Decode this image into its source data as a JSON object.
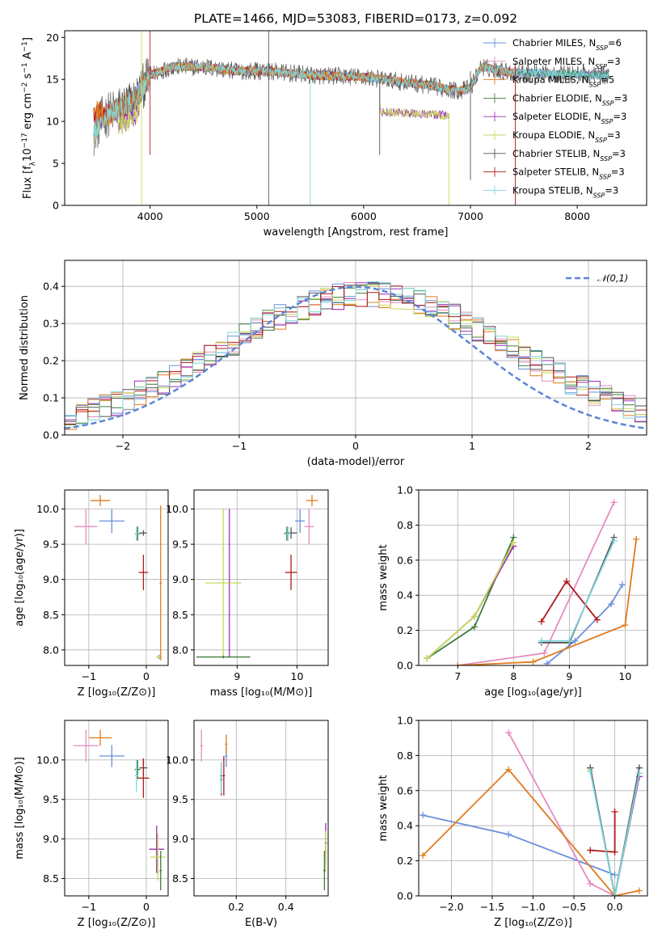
{
  "figure": {
    "title": "PLATE=1466, MJD=53083, FIBERID=0173, z=0.092",
    "series": [
      {
        "name": "Chabrier MILES, N",
        "sub": "SSP",
        "suffix": "=6",
        "color": "#6a8fdc"
      },
      {
        "name": "Salpeter MILES, N",
        "sub": "SSP",
        "suffix": "=3",
        "color": "#e58cc0"
      },
      {
        "name": "Kroupa MILES, N",
        "sub": "SSP",
        "suffix": "=5",
        "color": "#e07b1f"
      },
      {
        "name": "Chabrier ELODIE, N",
        "sub": "SSP",
        "suffix": "=3",
        "color": "#3e7d3e"
      },
      {
        "name": "Salpeter ELODIE, N",
        "sub": "SSP",
        "suffix": "=3",
        "color": "#9b2fb5"
      },
      {
        "name": "Kroupa ELODIE, N",
        "sub": "SSP",
        "suffix": "=3",
        "color": "#c7d95a"
      },
      {
        "name": "Chabrier STELIB, N",
        "sub": "SSP",
        "suffix": "=3",
        "color": "#555555"
      },
      {
        "name": "Salpeter STELIB, N",
        "sub": "SSP",
        "suffix": "=3",
        "color": "#b01818"
      },
      {
        "name": "Kroupa STELIB, N",
        "sub": "SSP",
        "suffix": "=3",
        "color": "#7fd6dc"
      }
    ]
  },
  "chart_data": [
    {
      "id": "spectrum",
      "type": "line",
      "xlabel": "wavelength [Angstrom, rest frame]",
      "ylabel": "Flux [f$_\\lambda$10$^{-17}$ erg cm$^{-2}$ s$^{-1}$ A$^{-1}$]",
      "ylabel_parts": [
        "Flux [f",
        "λ",
        "10",
        "−17",
        " erg cm",
        "−2",
        " s",
        "−1",
        " A",
        "−1",
        "]"
      ],
      "xlim": [
        3200,
        8650
      ],
      "ylim": [
        0,
        20.8
      ],
      "xticks": [
        4000,
        5000,
        6000,
        7000,
        8000
      ],
      "yticks": [
        0,
        5,
        10,
        15,
        20
      ],
      "grid": false,
      "legend": "upper-right",
      "continuum_knots": {
        "x": [
          3470,
          3560,
          3700,
          3850,
          4000,
          4200,
          4500,
          4800,
          5100,
          5500,
          6000,
          6500,
          6900,
          7000,
          7100,
          7400,
          8000,
          8300
        ],
        "y": [
          8.5,
          10.5,
          11.5,
          12.5,
          15.5,
          16.5,
          16.5,
          16.0,
          16.0,
          15.5,
          15.3,
          14.5,
          13.6,
          14.0,
          16.5,
          15.8,
          15.6,
          15.5
        ]
      }
    },
    {
      "id": "residuals",
      "type": "histogram",
      "xlabel": "(data-model)/error",
      "ylabel": "Normed distribution",
      "xlim": [
        -2.5,
        2.5
      ],
      "ylim": [
        0,
        0.47
      ],
      "xticks": [
        -2,
        -1,
        0,
        1,
        2
      ],
      "yticks": [
        0.0,
        0.1,
        0.2,
        0.3,
        0.4
      ],
      "grid": true,
      "legend": "upper-right",
      "bin_width": 0.1,
      "reference_curve": {
        "label": "𝒩(0,1)",
        "mean": 0,
        "sigma": 1,
        "color": "#5b86d6"
      }
    },
    {
      "id": "age_vs_Z",
      "type": "errorbar",
      "xlabel": "Z [log$_{10}$(Z/Z$_\\odot$)]",
      "ylabel": "age  [log$_{10}$(age/yr)]",
      "xlim": [
        -1.42,
        0.38
      ],
      "ylim": [
        7.78,
        10.27
      ],
      "xticks": [
        -1,
        0
      ],
      "yticks": [
        8.0,
        8.5,
        9.0,
        9.5,
        10.0
      ],
      "grid": true,
      "points": [
        {
          "s": 0,
          "x": -0.6,
          "xerr": 0.22,
          "y": 9.83,
          "yerr": 0.17
        },
        {
          "s": 1,
          "x": -1.05,
          "xerr": 0.2,
          "y": 9.75,
          "yerr": 0.25
        },
        {
          "s": 2,
          "x": -0.8,
          "xerr": 0.17,
          "y": 10.12,
          "yerr": 0.08
        },
        {
          "s": 3,
          "x": -0.15,
          "xerr": 0.05,
          "y": 9.65,
          "yerr": 0.1
        },
        {
          "s": 4,
          "x": 0.22,
          "xerr": 0.04,
          "y": 7.9,
          "yerr": 0.03
        },
        {
          "s": 5,
          "x": 0.22,
          "xerr": 0.05,
          "y": 7.9,
          "yerr": 0.02
        },
        {
          "s": 6,
          "x": -0.05,
          "xerr": 0.06,
          "y": 9.66,
          "yerr": 0.04
        },
        {
          "s": 7,
          "x": -0.05,
          "xerr": 0.08,
          "y": 9.1,
          "yerr": 0.25
        },
        {
          "s": 8,
          "x": -0.17,
          "xerr": 0.03,
          "y": 9.65,
          "yerr": 0.1
        },
        {
          "s": 2,
          "x": 0.25,
          "xerr": 0.02,
          "y": 8.95,
          "yerr": 1.1
        }
      ]
    },
    {
      "id": "age_vs_mass",
      "type": "errorbar",
      "xlabel": "mass [log$_{10}$(M/M$_\\odot$)]",
      "xlim": [
        8.28,
        10.52
      ],
      "ylim": [
        7.78,
        10.27
      ],
      "xticks": [
        9,
        10
      ],
      "yticks": [
        8.0,
        8.5,
        9.0,
        9.5,
        10.0
      ],
      "grid": true,
      "points": [
        {
          "s": 0,
          "x": 10.05,
          "xerr": 0.08,
          "y": 9.83,
          "yerr": 0.17
        },
        {
          "s": 1,
          "x": 10.2,
          "xerr": 0.08,
          "y": 9.75,
          "yerr": 0.25
        },
        {
          "s": 2,
          "x": 10.25,
          "xerr": 0.1,
          "y": 10.12,
          "yerr": 0.08
        },
        {
          "s": 3,
          "x": 9.83,
          "xerr": 0.05,
          "y": 9.65,
          "yerr": 0.1
        },
        {
          "s": 4,
          "x": 8.87,
          "xerr": 0.02,
          "y": 8.95,
          "yerr": 1.05
        },
        {
          "s": 5,
          "x": 8.77,
          "xerr": 0.3,
          "y": 8.95,
          "yerr": 1.05
        },
        {
          "s": 6,
          "x": 9.9,
          "xerr": 0.1,
          "y": 9.66,
          "yerr": 0.08
        },
        {
          "s": 7,
          "x": 9.9,
          "xerr": 0.1,
          "y": 9.1,
          "yerr": 0.25
        },
        {
          "s": 8,
          "x": 9.85,
          "xerr": 0.05,
          "y": 9.65,
          "yerr": 0.1
        },
        {
          "s": 3,
          "x": 8.77,
          "xerr": 0.45,
          "y": 7.9,
          "yerr": 0.02
        }
      ]
    },
    {
      "id": "weight_vs_age",
      "type": "line",
      "xlabel": "age  [log$_{10}$(age/yr)]",
      "ylabel": "mass weight",
      "xlim": [
        6.3,
        10.4
      ],
      "ylim": [
        0,
        1.0
      ],
      "xticks": [
        7,
        8,
        9,
        10
      ],
      "yticks": [
        0.0,
        0.2,
        0.4,
        0.6,
        0.8,
        1.0
      ],
      "grid": true,
      "series": [
        {
          "s": 0,
          "x": [
            8.6,
            9.1,
            9.75,
            9.95
          ],
          "y": [
            0.01,
            0.14,
            0.35,
            0.46
          ]
        },
        {
          "s": 1,
          "x": [
            7.0,
            8.55,
            9.8
          ],
          "y": [
            0.0,
            0.07,
            0.93
          ]
        },
        {
          "s": 2,
          "x": [
            7.0,
            8.35,
            10.0,
            10.2
          ],
          "y": [
            0.0,
            0.02,
            0.23,
            0.72
          ]
        },
        {
          "s": 3,
          "x": [
            6.45,
            7.3,
            8.0
          ],
          "y": [
            0.04,
            0.22,
            0.73
          ]
        },
        {
          "s": 4,
          "x": [
            6.45,
            7.3,
            8.0
          ],
          "y": [
            0.04,
            0.28,
            0.68
          ]
        },
        {
          "s": 5,
          "x": [
            6.45,
            7.3,
            8.0
          ],
          "y": [
            0.04,
            0.28,
            0.7
          ]
        },
        {
          "s": 6,
          "x": [
            8.5,
            9.0,
            9.8
          ],
          "y": [
            0.13,
            0.13,
            0.73
          ]
        },
        {
          "s": 7,
          "x": [
            8.5,
            8.95,
            9.5
          ],
          "y": [
            0.25,
            0.48,
            0.26
          ]
        },
        {
          "s": 8,
          "x": [
            8.5,
            9.0,
            9.8
          ],
          "y": [
            0.14,
            0.14,
            0.71
          ]
        }
      ]
    },
    {
      "id": "mass_vs_Z",
      "type": "errorbar",
      "xlabel": "Z [log$_{10}$(Z/Z$_\\odot$)]",
      "ylabel": "mass [log$_{10}$(M/M$_\\odot$)]",
      "xlim": [
        -1.42,
        0.38
      ],
      "ylim": [
        8.28,
        10.5
      ],
      "xticks": [
        -1,
        0
      ],
      "yticks": [
        8.5,
        9.0,
        9.5,
        10.0
      ],
      "grid": true,
      "points": [
        {
          "s": 0,
          "x": -0.6,
          "xerr": 0.22,
          "y": 10.05,
          "yerr": 0.14
        },
        {
          "s": 1,
          "x": -1.05,
          "xerr": 0.22,
          "y": 10.18,
          "yerr": 0.2
        },
        {
          "s": 2,
          "x": -0.8,
          "xerr": 0.2,
          "y": 10.28,
          "yerr": 0.1
        },
        {
          "s": 3,
          "x": -0.15,
          "xerr": 0.05,
          "y": 9.88,
          "yerr": 0.12
        },
        {
          "s": 4,
          "x": 0.18,
          "xerr": 0.13,
          "y": 8.87,
          "yerr": 0.3
        },
        {
          "s": 5,
          "x": 0.2,
          "xerr": 0.13,
          "y": 8.77,
          "yerr": 0.3
        },
        {
          "s": 6,
          "x": -0.05,
          "xerr": 0.07,
          "y": 9.9,
          "yerr": 0.1
        },
        {
          "s": 7,
          "x": -0.05,
          "xerr": 0.1,
          "y": 9.77,
          "yerr": 0.25
        },
        {
          "s": 8,
          "x": -0.17,
          "xerr": 0.03,
          "y": 9.8,
          "yerr": 0.2
        },
        {
          "s": 3,
          "x": 0.25,
          "xerr": 0.02,
          "y": 8.6,
          "yerr": 0.25
        }
      ]
    },
    {
      "id": "mass_vs_EBV",
      "type": "errorbar",
      "xlabel": "E(B-V)",
      "xlim": [
        0.03,
        0.57
      ],
      "ylim": [
        8.28,
        10.5
      ],
      "xticks": [
        0.2,
        0.4
      ],
      "yticks": [
        8.5,
        9.0,
        9.5,
        10.0
      ],
      "grid": true,
      "points": [
        {
          "s": 0,
          "x": 0.16,
          "xerr": 0.005,
          "y": 10.05,
          "yerr": 0.14
        },
        {
          "s": 1,
          "x": 0.06,
          "xerr": 0.005,
          "y": 10.18,
          "yerr": 0.2
        },
        {
          "s": 2,
          "x": 0.16,
          "xerr": 0.005,
          "y": 10.2,
          "yerr": 0.12
        },
        {
          "s": 3,
          "x": 0.14,
          "xerr": 0.005,
          "y": 9.8,
          "yerr": 0.15
        },
        {
          "s": 4,
          "x": 0.56,
          "xerr": 0.005,
          "y": 8.95,
          "yerr": 0.25
        },
        {
          "s": 5,
          "x": 0.56,
          "xerr": 0.005,
          "y": 8.85,
          "yerr": 0.25
        },
        {
          "s": 6,
          "x": 0.14,
          "xerr": 0.005,
          "y": 9.75,
          "yerr": 0.2
        },
        {
          "s": 7,
          "x": 0.15,
          "xerr": 0.005,
          "y": 9.8,
          "yerr": 0.25
        },
        {
          "s": 8,
          "x": 0.14,
          "xerr": 0.005,
          "y": 9.78,
          "yerr": 0.2
        },
        {
          "s": 3,
          "x": 0.555,
          "xerr": 0.005,
          "y": 8.6,
          "yerr": 0.25
        }
      ]
    },
    {
      "id": "weight_vs_Z",
      "type": "line",
      "xlabel": "Z [log$_{10}$(Z/Z$_\\odot$)]",
      "ylabel": "mass weight",
      "xlim": [
        -2.4,
        0.4
      ],
      "ylim": [
        0,
        1.0
      ],
      "xticks": [
        -2.0,
        -1.5,
        -1.0,
        -0.5,
        0.0
      ],
      "yticks": [
        0.0,
        0.2,
        0.4,
        0.6,
        0.8,
        1.0
      ],
      "grid": true,
      "series": [
        {
          "s": 0,
          "x": [
            -2.35,
            -1.3,
            0.0
          ],
          "y": [
            0.46,
            0.35,
            0.12
          ]
        },
        {
          "s": 1,
          "x": [
            -1.3,
            -0.3,
            0.0
          ],
          "y": [
            0.93,
            0.07,
            0.0
          ]
        },
        {
          "s": 2,
          "x": [
            -2.35,
            -1.3,
            0.0,
            0.3
          ],
          "y": [
            0.23,
            0.72,
            0.0,
            0.03
          ]
        },
        {
          "s": 3,
          "x": [
            -0.3,
            0.0,
            0.3
          ],
          "y": [
            0.73,
            0.0,
            0.73
          ]
        },
        {
          "s": 4,
          "x": [
            -0.3,
            0.0,
            0.3
          ],
          "y": [
            0.73,
            0.0,
            0.68
          ]
        },
        {
          "s": 5,
          "x": [
            -0.3,
            0.0,
            0.3
          ],
          "y": [
            0.72,
            0.0,
            0.7
          ]
        },
        {
          "s": 6,
          "x": [
            -0.3,
            0.0,
            0.3
          ],
          "y": [
            0.73,
            0.0,
            0.73
          ]
        },
        {
          "s": 7,
          "x": [
            -0.3,
            0.0,
            0.0
          ],
          "y": [
            0.26,
            0.25,
            0.48
          ]
        },
        {
          "s": 8,
          "x": [
            -0.3,
            0.0,
            0.3
          ],
          "y": [
            0.71,
            0.0,
            0.7
          ]
        }
      ]
    }
  ]
}
